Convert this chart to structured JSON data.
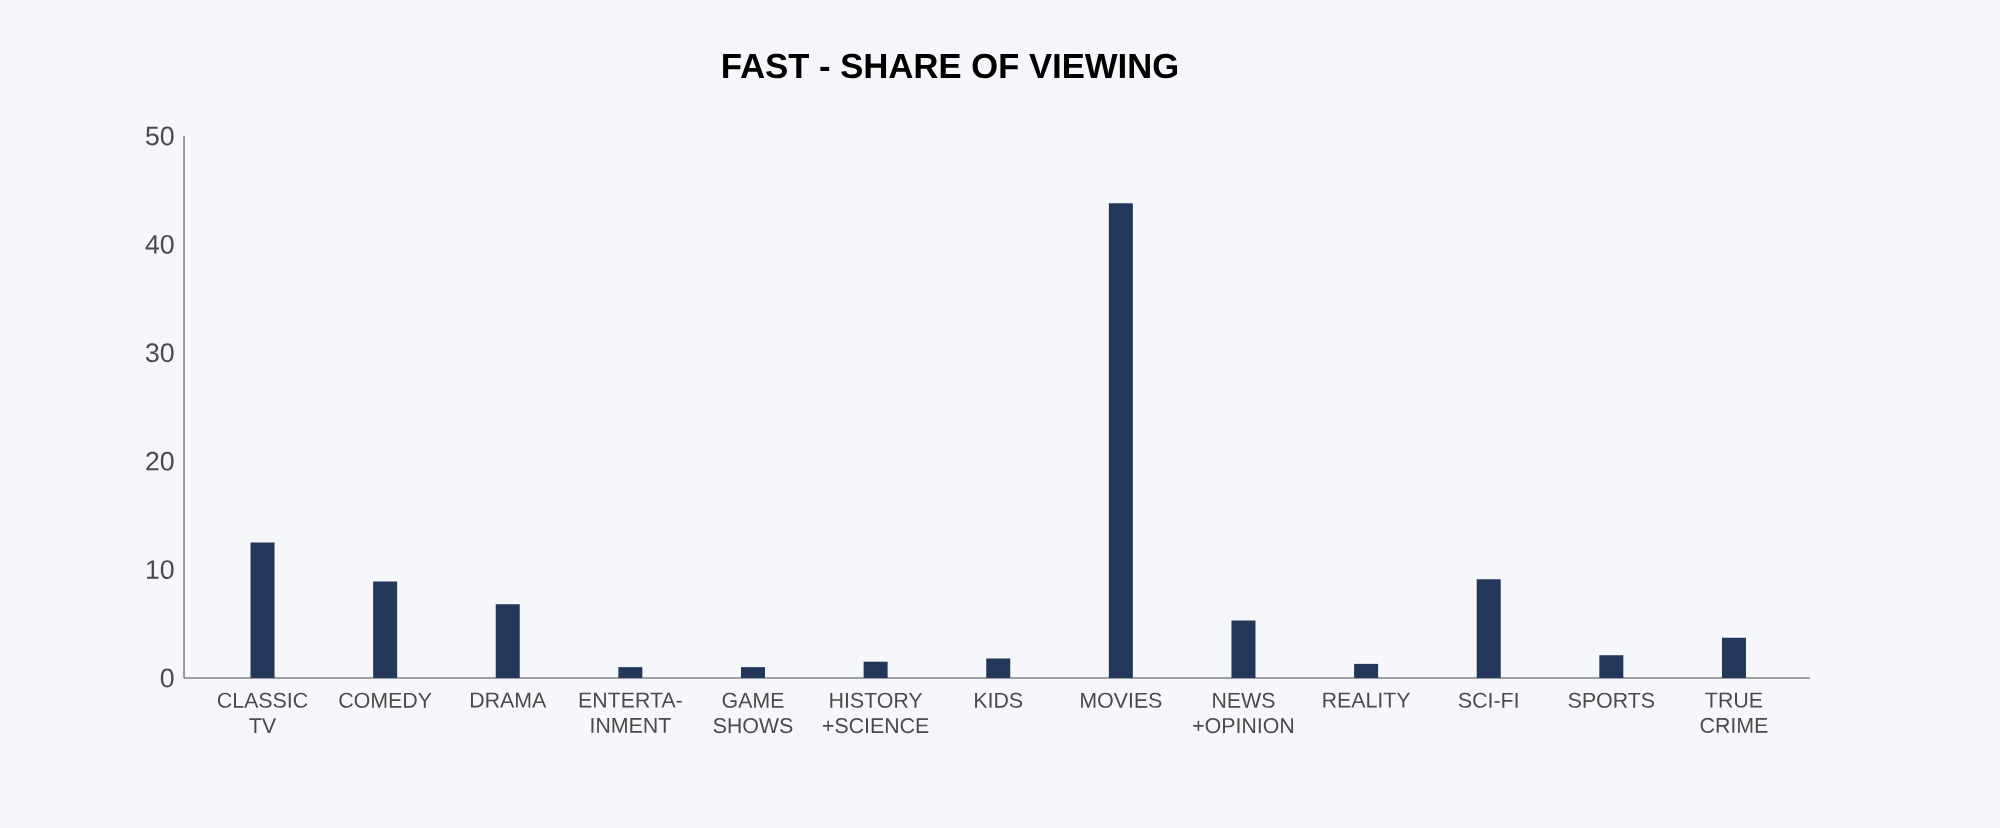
{
  "chart_data": {
    "type": "bar",
    "title": "FAST - SHARE OF VIEWING",
    "categories": [
      "CLASSIC TV",
      "COMEDY",
      "DRAMA",
      "ENTERTA-INMENT",
      "GAME SHOWS",
      "HISTORY +SCIENCE",
      "KIDS",
      "MOVIES",
      "NEWS +OPINION",
      "REALITY",
      "SCI-FI",
      "SPORTS",
      "TRUE CRIME"
    ],
    "values": [
      12.5,
      8.9,
      6.8,
      1.0,
      1.0,
      1.5,
      1.8,
      43.8,
      5.3,
      1.3,
      9.1,
      2.1,
      3.7
    ],
    "color": "#22375a",
    "ylim": [
      0,
      50
    ],
    "yticks": [
      0,
      10,
      20,
      30,
      40,
      50
    ]
  }
}
